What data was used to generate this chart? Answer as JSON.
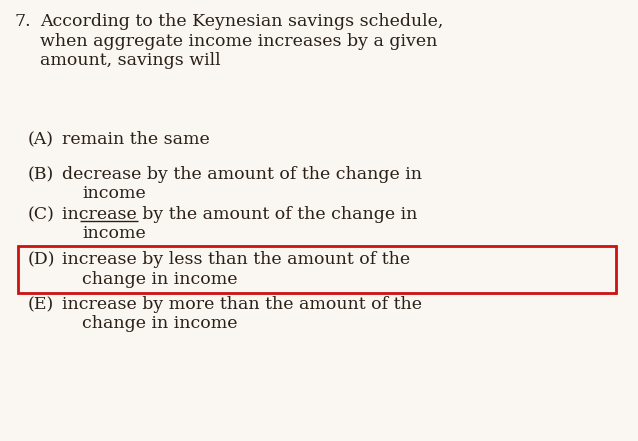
{
  "background_color": "#faf6f1",
  "text_color": "#2a2018",
  "question_number": "7.",
  "question_lines": [
    "According to the Keynesian savings schedule,",
    "when aggregate income increases by a given",
    "amount, savings will"
  ],
  "options": [
    {
      "label": "(A)",
      "text1": "remain the same",
      "text2": "",
      "strikethrough": false,
      "boxed": false
    },
    {
      "label": "(B)",
      "text1": "decrease by the amount of the change in",
      "text2": "income",
      "strikethrough": false,
      "boxed": false
    },
    {
      "label": "(C)",
      "text1": "increase by the amount of the change in",
      "text2": "income",
      "strikethrough": true,
      "boxed": false
    },
    {
      "label": "(D)",
      "text1": "increase by less than the amount of the",
      "text2": "change in income",
      "strikethrough": false,
      "boxed": true
    },
    {
      "label": "(E)",
      "text1": "increase by more than the amount of the",
      "text2": "change in income",
      "strikethrough": false,
      "boxed": false
    }
  ],
  "box_color": "#cc1111",
  "font_size": 12.5
}
